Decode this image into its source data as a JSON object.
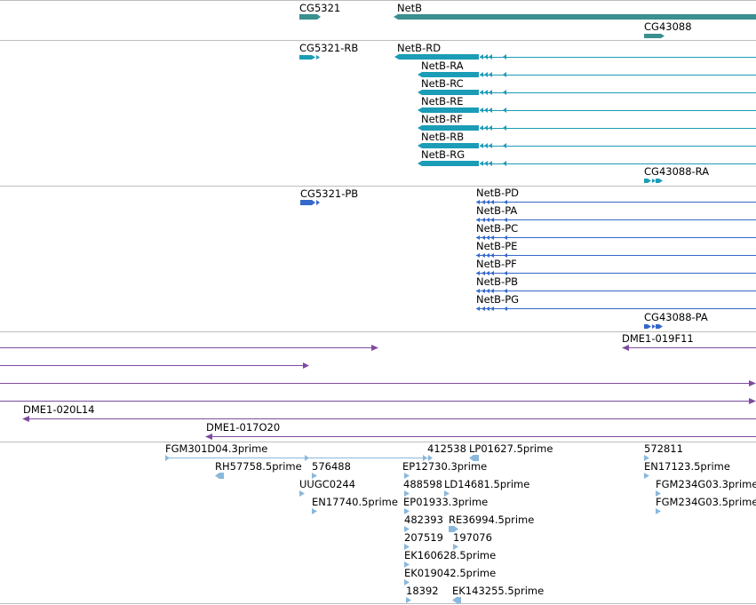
{
  "colors": {
    "gene": "#3a8f8f",
    "transcript": "#1b9cb7",
    "protein": "#3568c8",
    "clone": "#7d4ca0",
    "est": "#8ab8dc",
    "separator": "#bdbdbd"
  },
  "tracks": {
    "genes": {
      "labels": [
        "CG5321",
        "NetB",
        "CG43088"
      ]
    },
    "transcripts": {
      "labels": [
        "CG5321-RB",
        "NetB-RD",
        "NetB-RA",
        "NetB-RC",
        "NetB-RE",
        "NetB-RF",
        "NetB-RB",
        "NetB-RG",
        "CG43088-RA"
      ]
    },
    "proteins": {
      "labels": [
        "CG5321-PB",
        "NetB-PD",
        "NetB-PA",
        "NetB-PC",
        "NetB-PE",
        "NetB-PF",
        "NetB-PB",
        "NetB-PG",
        "CG43088-PA"
      ]
    },
    "clones": {
      "labels": [
        "DME1-019F11",
        "DME1-020L14",
        "DME1-017O20"
      ]
    },
    "ests": {
      "labels": [
        "FGM301D04.3prime",
        "412538",
        "LP01627.5prime",
        "572811",
        "RH57758.5prime",
        "576488",
        "EP12730.3prime",
        "EN17123.5prime",
        "UUGC0244",
        "488598",
        "LD14681.5prime",
        "FGM234G03.3prime",
        "EN17740.5prime",
        "EP01933.3prime",
        "FGM234G03.5prime",
        "482393",
        "RE36994.5prime",
        "207519",
        "197076",
        "EK160628.5prime",
        "EK019042.5prime",
        "18392",
        "EK143255.5prime"
      ]
    }
  }
}
